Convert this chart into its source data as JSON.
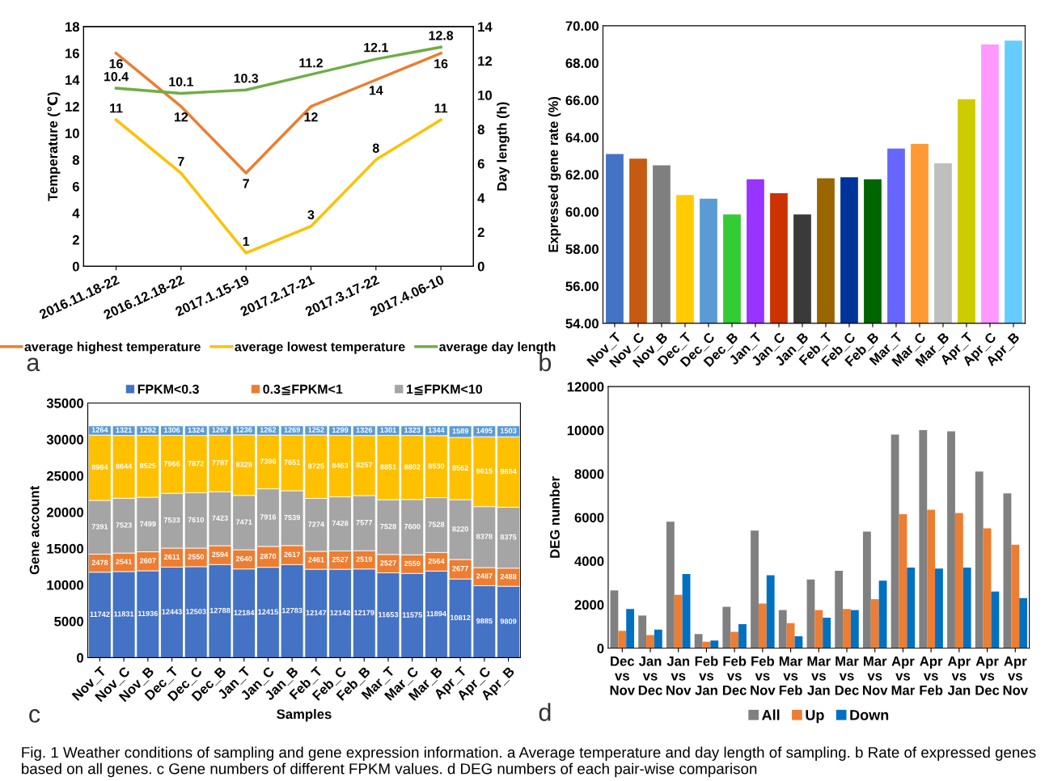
{
  "chart_data": [
    {
      "type": "line",
      "categories": [
        "2016.11.18-22",
        "2016.12.18-22",
        "2017.1.15-19",
        "2017.2.17-21",
        "2017.3.17-22",
        "2017.4.06-10"
      ],
      "ylabel": "Temperature (℃)",
      "y2label": "Day length (h)",
      "ylim": [
        0,
        18
      ],
      "yticks": [
        0,
        2,
        4,
        6,
        8,
        10,
        12,
        14,
        16,
        18
      ],
      "y2lim": [
        0,
        14
      ],
      "y2ticks": [
        0,
        2,
        4,
        6,
        8,
        10,
        12,
        14
      ],
      "data_labels": true,
      "legend": "bottom",
      "grid": false,
      "marker": "none",
      "line_style": "solid",
      "series": [
        {
          "name": "average highest temperature",
          "color": "#ed7d31",
          "values": [
            16,
            12,
            7,
            12,
            14,
            16
          ]
        },
        {
          "name": "average lowest temperature",
          "color": "#ffc000",
          "values": [
            11,
            7,
            1,
            3,
            8,
            11
          ]
        },
        {
          "name": "average day length",
          "color": "#70ad47",
          "axis": "y2",
          "values": [
            10.4,
            10.1,
            10.3,
            11.2,
            12.1,
            12.8
          ]
        }
      ],
      "annotations": [
        "a",
        "Fig. 1 Weather conditions of sampling and gene expression information. a Average temperature and day length of sampling. b Rate of expressed genes based on all genes. c Gene numbers of different FPKM values. d DEG numbers of each pair-wise comparison"
      ]
    },
    {
      "type": "bar",
      "categories": [
        "Nov_T",
        "Nov_C",
        "Nov_B",
        "Dec_T",
        "Dec_C",
        "Dec_B",
        "Jan_T",
        "Jan_C",
        "Jan_B",
        "Feb_T",
        "Feb_C",
        "Feb_B",
        "Mar_T",
        "Mar_C",
        "Mar_B",
        "Apr_T",
        "Apr_C",
        "Apr_B"
      ],
      "ylabel": "Expressed gene rate (%)",
      "ylim": [
        54,
        70
      ],
      "yticks": [
        {
          "value": 54,
          "label": "54.00"
        },
        {
          "value": 56,
          "label": "56.00"
        },
        {
          "value": 58,
          "label": "58.00"
        },
        {
          "value": 60,
          "label": "60.00"
        },
        {
          "value": 62,
          "label": "62.00"
        },
        {
          "value": 64,
          "label": "64.00"
        },
        {
          "value": 66,
          "label": "66.00"
        },
        {
          "value": 68,
          "label": "68.00"
        },
        {
          "value": 70,
          "label": "70.00"
        }
      ],
      "grid": false,
      "legend": false,
      "values": [
        63.1,
        62.85,
        62.5,
        60.9,
        60.7,
        59.85,
        61.75,
        61.0,
        59.85,
        61.8,
        61.85,
        61.75,
        63.4,
        63.65,
        62.6,
        66.05,
        69.0,
        69.2
      ],
      "colors": [
        "#4472c4",
        "#c55a11",
        "#7f7f7f",
        "#ffcc00",
        "#5b9bd5",
        "#33cc33",
        "#9933ff",
        "#cc3300",
        "#3a3a3a",
        "#996600",
        "#003399",
        "#006600",
        "#6666ff",
        "#ff9933",
        "#bfbfbf",
        "#cccc00",
        "#ff99ff",
        "#66ccff"
      ],
      "annotations": [
        "b"
      ]
    },
    {
      "type": "bar",
      "stacked": true,
      "categories": [
        "Nov_T",
        "Nov_C",
        "Nov_B",
        "Dec_T",
        "Dec_C",
        "Dec_B",
        "Jan_T",
        "Jan_C",
        "Jan_B",
        "Feb_T",
        "Feb_C",
        "Feb_B",
        "Mar_T",
        "Mar_C",
        "Mar_B",
        "Apr_T",
        "Apr_C",
        "Apr_B"
      ],
      "xlabel": "Samples",
      "ylabel": "Gene account",
      "ylim": [
        0,
        35000
      ],
      "yticks": [
        0,
        5000,
        10000,
        15000,
        20000,
        25000,
        30000,
        35000
      ],
      "grid": false,
      "legend": "top",
      "data_labels": true,
      "series": [
        {
          "name": "FPKM<0.3",
          "color": "#4472c4",
          "values": [
            11742,
            11831,
            11936,
            12443,
            12503,
            12788,
            12184,
            12415,
            12783,
            12147,
            12142,
            12179,
            11653,
            11575,
            11894,
            10812,
            9885,
            9809
          ]
        },
        {
          "name": "0.3≦FPKM<1",
          "color": "#ed7d31",
          "values": [
            2478,
            2541,
            2607,
            2611,
            2550,
            2594,
            2640,
            2870,
            2617,
            2461,
            2527,
            2519,
            2527,
            2559,
            2564,
            2677,
            2487,
            2488
          ]
        },
        {
          "name": "1≦FPKM<10",
          "color": "#a5a5a5",
          "values": [
            7391,
            7523,
            7499,
            7533,
            7610,
            7423,
            7471,
            7916,
            7539,
            7274,
            7428,
            7577,
            7528,
            7600,
            7528,
            8220,
            8378,
            8375
          ]
        },
        {
          "color": "#ffc000",
          "values": [
            8984,
            8644,
            8525,
            7966,
            7872,
            7787,
            8329,
            7396,
            7651,
            8725,
            8463,
            8257,
            8851,
            8802,
            8530,
            8562,
            9615,
            9684
          ]
        },
        {
          "color": "#5b9bd5",
          "values": [
            1264,
            1321,
            1292,
            1306,
            1324,
            1267,
            1236,
            1262,
            1269,
            1252,
            1299,
            1326,
            1301,
            1323,
            1344,
            1589,
            1495,
            1503
          ]
        }
      ],
      "annotations": [
        "c"
      ]
    },
    {
      "type": "bar",
      "categories": [
        "Dec\nvs\nNov",
        "Jan\nvs\nDec",
        "Jan\nvs\nNov",
        "Feb\nvs\nJan",
        "Feb\nvs\nDec",
        "Feb\nvs\nNov",
        "Mar\nvs\nFeb",
        "Mar\nvs\nJan",
        "Mar\nvs\nDec",
        "Mar\nvs\nNov",
        "Apr\nvs\nMar",
        "Apr\nvs\nFeb",
        "Apr\nvs\nJan",
        "Apr\nvs\nDec",
        "Apr\nvs\nNov"
      ],
      "ylabel": "DEG number",
      "ylim": [
        0,
        12000
      ],
      "yticks": [
        0,
        2000,
        4000,
        6000,
        8000,
        10000,
        12000
      ],
      "grid": false,
      "legend": "bottom",
      "series": [
        {
          "name": "All",
          "color": "#808080",
          "values": [
            2650,
            1500,
            5800,
            650,
            1900,
            5400,
            1750,
            3150,
            3550,
            5350,
            9800,
            10000,
            9950,
            8100,
            7100
          ]
        },
        {
          "name": "Up",
          "color": "#ed7d31",
          "values": [
            800,
            600,
            2450,
            300,
            750,
            2050,
            1150,
            1750,
            1800,
            2250,
            6150,
            6350,
            6200,
            5500,
            4750
          ]
        },
        {
          "name": "Down",
          "color": "#0070c0",
          "values": [
            1800,
            850,
            3400,
            350,
            1100,
            3350,
            550,
            1400,
            1750,
            3100,
            3700,
            3650,
            3700,
            2600,
            2300
          ]
        }
      ],
      "annotations": [
        "d"
      ]
    }
  ]
}
